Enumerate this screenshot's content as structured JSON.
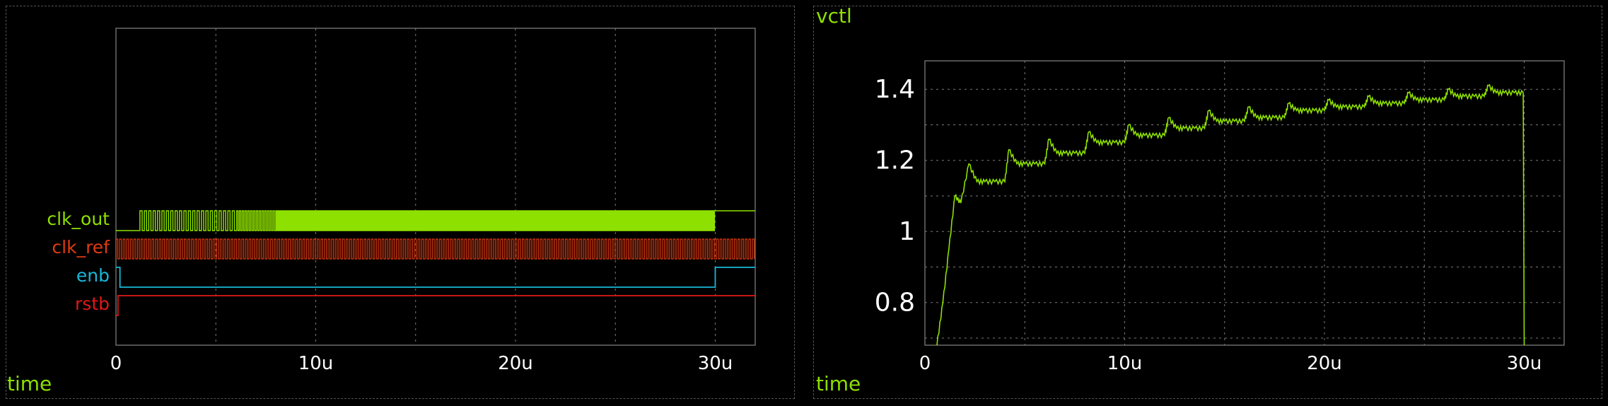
{
  "colors": {
    "background": "#000000",
    "frame": "#6b6b6b",
    "grid": "#7a7a7a",
    "clk_out": "#8ee000",
    "clk_ref": "#e03a10",
    "enb": "#18b8d8",
    "rstb": "#e01818",
    "vctl": "#8ee000",
    "text": "#ffffff",
    "title": "#8ee000"
  },
  "left_panel": {
    "xlabel": "time"
  },
  "right_panel": {
    "title": "vctl",
    "xlabel": "time"
  },
  "chart_data": [
    {
      "type": "line",
      "title": "",
      "xlabel": "time",
      "ylabel": "",
      "xlim": [
        0,
        32
      ],
      "x_unit": "u",
      "xticks": [
        {
          "value": 0,
          "label": "0"
        },
        {
          "value": 10,
          "label": "10u"
        },
        {
          "value": 20,
          "label": "20u"
        },
        {
          "value": 30,
          "label": "30u"
        }
      ],
      "grid": true,
      "series": [
        {
          "name": "clk_out",
          "kind": "digital",
          "color": "#8ee000",
          "active_from": 1.2,
          "active_to": 30.0,
          "final_level": "high"
        },
        {
          "name": "clk_ref",
          "kind": "digital",
          "color": "#e03a10",
          "active_from": 0.0,
          "active_to": 32.0
        },
        {
          "name": "enb",
          "kind": "digital",
          "color": "#18b8d8",
          "x": [
            0,
            0.2,
            0.2,
            30.0,
            30.0,
            32.0
          ],
          "y": [
            1,
            1,
            0,
            0,
            1,
            1
          ]
        },
        {
          "name": "rstb",
          "kind": "digital",
          "color": "#e01818",
          "x": [
            0,
            0.1,
            0.1,
            32.0
          ],
          "y": [
            0,
            0,
            1,
            1
          ]
        }
      ]
    },
    {
      "type": "line",
      "title": "vctl",
      "xlabel": "time",
      "ylabel": "",
      "xlim": [
        0,
        32
      ],
      "ylim": [
        0.68,
        1.48
      ],
      "xticks": [
        {
          "value": 0,
          "label": "0"
        },
        {
          "value": 10,
          "label": "10u"
        },
        {
          "value": 20,
          "label": "20u"
        },
        {
          "value": 30,
          "label": "30u"
        }
      ],
      "yticks": [
        {
          "value": 0.8,
          "label": "0.8"
        },
        {
          "value": 1.0,
          "label": "1"
        },
        {
          "value": 1.2,
          "label": "1.2"
        },
        {
          "value": 1.4,
          "label": "1.4"
        }
      ],
      "grid": true,
      "series": [
        {
          "name": "vctl",
          "x": [
            0.6,
            0.9,
            1.2,
            1.5,
            1.8,
            2.2,
            2.6,
            3.0,
            3.5,
            4.0,
            4.2,
            4.6,
            5.0,
            5.5,
            6.0,
            6.2,
            6.6,
            7.0,
            7.5,
            8.0,
            8.2,
            8.6,
            9.0,
            9.5,
            10.0,
            10.2,
            10.6,
            11.0,
            11.5,
            12.0,
            12.2,
            12.6,
            13.0,
            13.5,
            14.0,
            14.2,
            14.6,
            15.0,
            15.5,
            16.0,
            16.2,
            16.6,
            17.0,
            17.5,
            18.0,
            18.2,
            18.6,
            19.0,
            19.5,
            20.0,
            20.2,
            20.6,
            21.0,
            21.5,
            22.0,
            22.2,
            22.6,
            23.0,
            23.5,
            24.0,
            24.2,
            24.6,
            25.0,
            25.5,
            26.0,
            26.2,
            26.6,
            27.0,
            27.5,
            28.0,
            28.2,
            28.6,
            29.0,
            29.5,
            29.95,
            30.0
          ],
          "y": [
            0.68,
            0.8,
            0.95,
            1.1,
            1.08,
            1.19,
            1.14,
            1.14,
            1.14,
            1.14,
            1.23,
            1.19,
            1.19,
            1.19,
            1.19,
            1.26,
            1.22,
            1.22,
            1.22,
            1.22,
            1.28,
            1.25,
            1.25,
            1.25,
            1.25,
            1.3,
            1.27,
            1.27,
            1.27,
            1.27,
            1.32,
            1.29,
            1.29,
            1.29,
            1.29,
            1.34,
            1.31,
            1.31,
            1.31,
            1.31,
            1.35,
            1.32,
            1.32,
            1.32,
            1.32,
            1.36,
            1.34,
            1.34,
            1.34,
            1.34,
            1.37,
            1.35,
            1.35,
            1.35,
            1.35,
            1.38,
            1.36,
            1.36,
            1.36,
            1.36,
            1.39,
            1.37,
            1.37,
            1.37,
            1.37,
            1.4,
            1.38,
            1.38,
            1.38,
            1.38,
            1.41,
            1.39,
            1.39,
            1.39,
            1.39,
            0.68
          ]
        }
      ]
    }
  ]
}
